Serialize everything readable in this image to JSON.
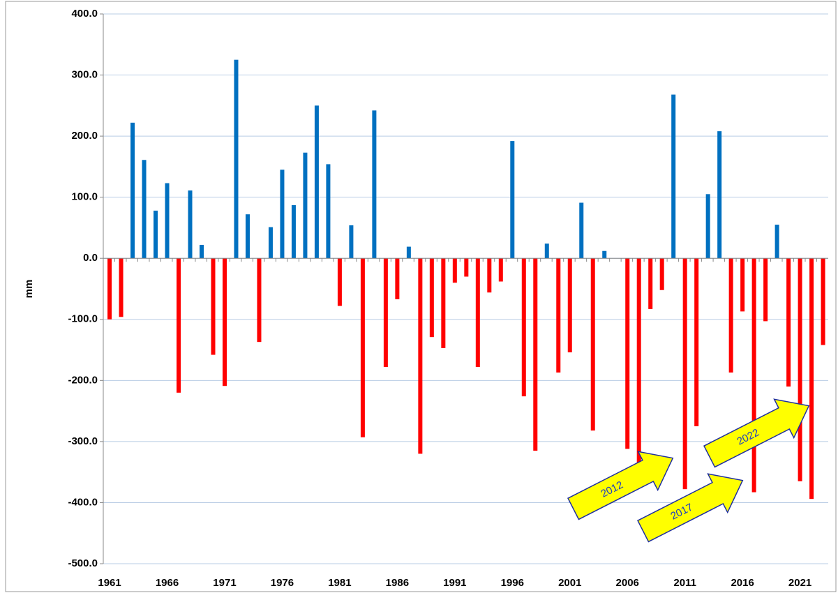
{
  "chart_data": {
    "type": "bar",
    "y_label": "mm",
    "categories": [
      "1961",
      null,
      null,
      null,
      null,
      "1966",
      null,
      null,
      null,
      null,
      "1971",
      null,
      null,
      null,
      null,
      "1976",
      null,
      null,
      null,
      null,
      "1981",
      null,
      null,
      null,
      null,
      "1986",
      null,
      null,
      null,
      null,
      "1991",
      null,
      null,
      null,
      null,
      "1996",
      null,
      null,
      null,
      null,
      "2001",
      null,
      null,
      null,
      null,
      "2006",
      null,
      null,
      null,
      null,
      "2011",
      null,
      null,
      null,
      null,
      "2016",
      null,
      null,
      null,
      null,
      "2021",
      null,
      null
    ],
    "values": [
      -100,
      -96,
      222,
      161,
      78,
      123,
      -220,
      111,
      22,
      -158,
      -209,
      325,
      72,
      -137,
      51,
      145,
      87,
      173,
      250,
      154,
      -78,
      54,
      -293,
      242,
      -178,
      -67,
      19,
      -320,
      -129,
      -147,
      -40,
      -30,
      -178,
      -56,
      -38,
      192,
      -226,
      -315,
      24,
      -187,
      -154,
      91,
      -282,
      12,
      0,
      -312,
      -340,
      -83,
      -52,
      268,
      -378,
      -275,
      105,
      208,
      -187,
      -87,
      -383,
      -103,
      55,
      -210,
      -365,
      -394,
      -142
    ],
    "color": "#0070c0",
    "negative_color": "#ff0000",
    "ylim": [
      -500,
      400
    ],
    "yticks": [
      {
        "value": -500,
        "label": "-500.0"
      },
      {
        "value": -400,
        "label": "-400.0"
      },
      {
        "value": -300,
        "label": "-300.0"
      },
      {
        "value": -200,
        "label": "-200.0"
      },
      {
        "value": -100,
        "label": "-100.0"
      },
      {
        "value": 0,
        "label": "0.0"
      },
      {
        "value": 100,
        "label": "100.0"
      },
      {
        "value": 200,
        "label": "200.0"
      },
      {
        "value": 300,
        "label": "300.0"
      },
      {
        "value": 400,
        "label": "400.0"
      }
    ],
    "grid": true,
    "annotations": [
      {
        "text": "2012"
      },
      {
        "text": "2017"
      },
      {
        "text": "2022"
      }
    ]
  }
}
